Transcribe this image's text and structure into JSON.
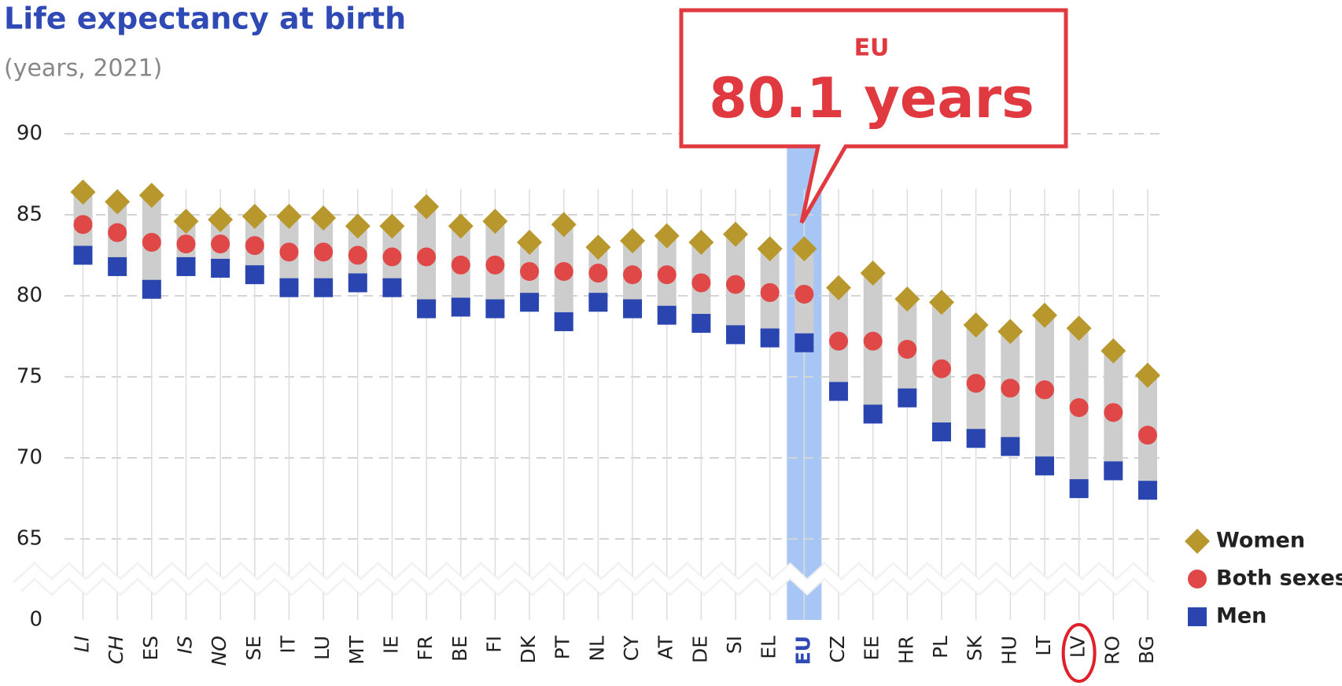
{
  "chart_data": {
    "type": "range_dot",
    "title": "Life expectancy at birth",
    "subtitle": "(years, 2021)",
    "callout": {
      "label": "EU",
      "text": "80.1 years"
    },
    "categories": [
      "LI",
      "CH",
      "ES",
      "IS",
      "NO",
      "SE",
      "IT",
      "LU",
      "MT",
      "IE",
      "FR",
      "BE",
      "FI",
      "DK",
      "PT",
      "NL",
      "CY",
      "AT",
      "DE",
      "SI",
      "EL",
      "EU",
      "CZ",
      "EE",
      "HR",
      "PL",
      "SK",
      "HU",
      "LT",
      "LV",
      "RO",
      "BG"
    ],
    "series": [
      {
        "name": "Women",
        "color": "#b8982c",
        "marker": "diamond",
        "values": [
          86.4,
          85.8,
          86.2,
          84.6,
          84.7,
          84.9,
          84.9,
          84.8,
          84.3,
          84.3,
          85.5,
          84.3,
          84.6,
          83.3,
          84.4,
          83.0,
          83.4,
          83.7,
          83.3,
          83.8,
          82.9,
          82.9,
          80.5,
          81.4,
          79.8,
          79.6,
          78.2,
          77.8,
          78.8,
          78.0,
          76.6,
          75.1
        ]
      },
      {
        "name": "Both sexes",
        "color": "#e04848",
        "marker": "circle",
        "values": [
          84.4,
          83.9,
          83.3,
          83.2,
          83.2,
          83.1,
          82.7,
          82.7,
          82.5,
          82.4,
          82.4,
          81.9,
          81.9,
          81.5,
          81.5,
          81.4,
          81.3,
          81.3,
          80.8,
          80.7,
          80.2,
          80.1,
          77.2,
          77.2,
          76.7,
          75.5,
          74.6,
          74.3,
          74.2,
          73.1,
          72.8,
          71.4
        ]
      },
      {
        "name": "Men",
        "color": "#2a45b0",
        "marker": "square",
        "values": [
          82.5,
          81.8,
          80.4,
          81.8,
          81.7,
          81.3,
          80.5,
          80.5,
          80.8,
          80.5,
          79.2,
          79.3,
          79.2,
          79.6,
          78.4,
          79.6,
          79.2,
          78.8,
          78.3,
          77.6,
          77.4,
          77.1,
          74.1,
          72.7,
          73.7,
          71.6,
          71.2,
          70.7,
          69.5,
          68.1,
          69.2,
          68.0
        ]
      }
    ],
    "ylim": [
      0,
      90
    ],
    "axis_break": [
      0,
      65
    ],
    "yticks": [
      0,
      65,
      70,
      75,
      80,
      85,
      90
    ],
    "grid": true,
    "legend": "bottom-right"
  }
}
